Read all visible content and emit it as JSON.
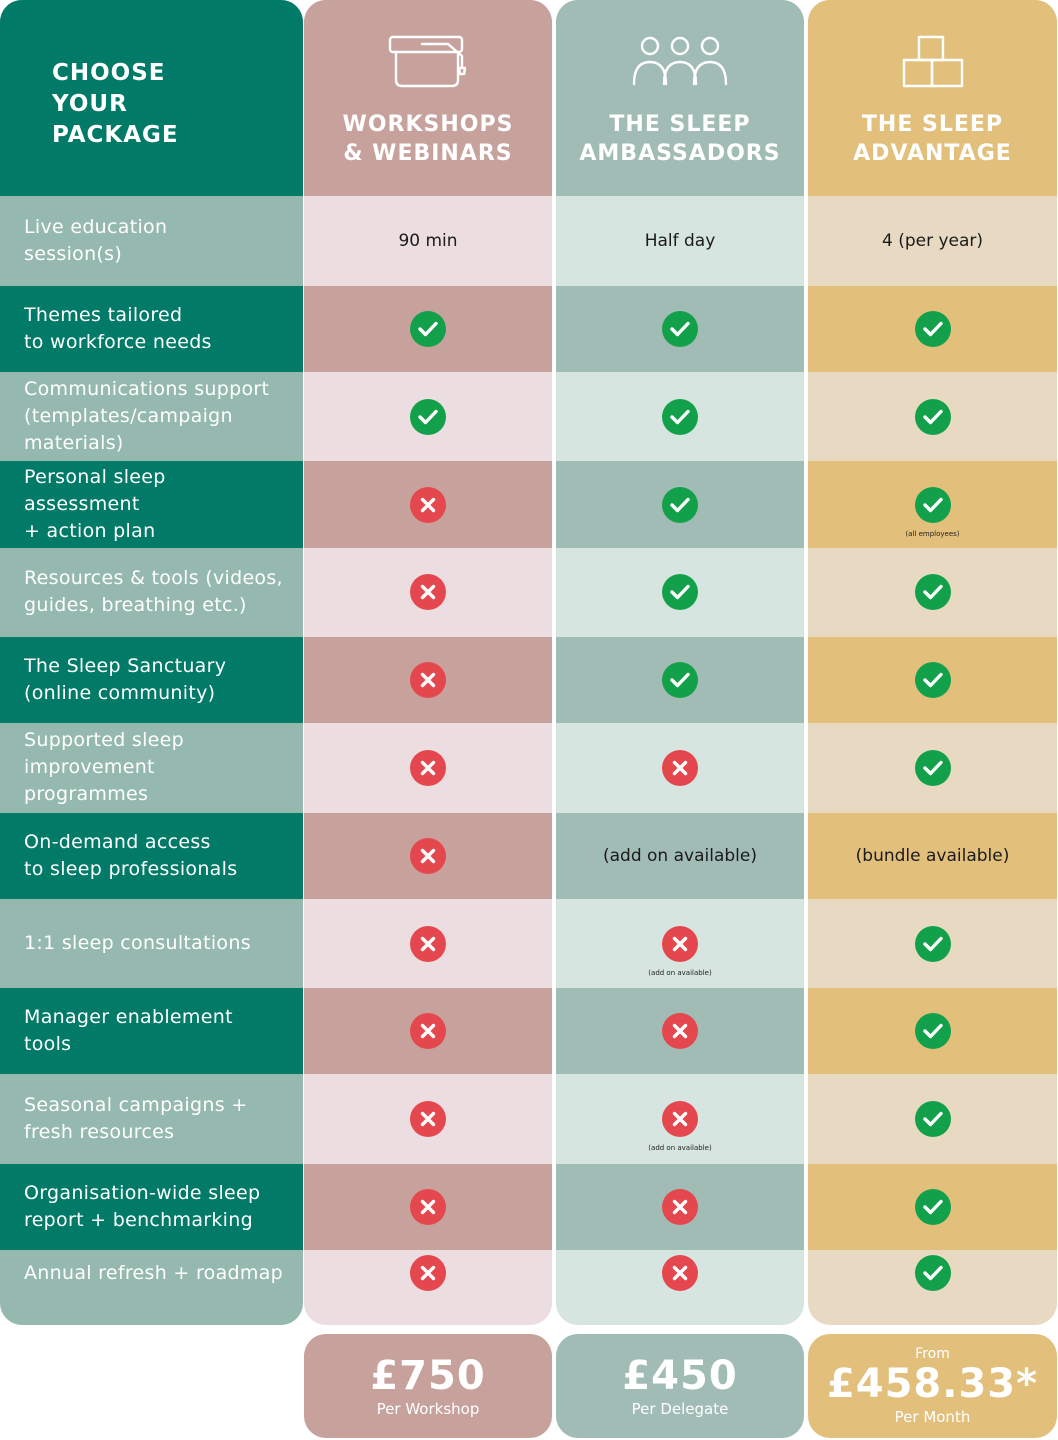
{
  "header": {
    "title": "CHOOSE\nYOUR\nPACKAGE",
    "packages": [
      {
        "title": "WORKSHOPS\n& WEBINARS",
        "icon": "graduation-cap-icon"
      },
      {
        "title": "THE SLEEP\nAMBASSADORS",
        "icon": "group-people-icon"
      },
      {
        "title": "THE SLEEP\nADVANTAGE",
        "icon": "stacked-boxes-icon"
      }
    ]
  },
  "colors": {
    "teal_dark": "#017a68",
    "teal_light": "#95b9ae",
    "rose_header": "#c7a19b",
    "rose_light": "#ebdde0",
    "sage_header": "#a1bcb5",
    "sage_light": "#d6e5df",
    "gold_header": "#e2c07b",
    "gold_light": "#e8d9c2",
    "check_green": "#12a14a",
    "cross_red": "#e5474e"
  },
  "rows": [
    {
      "feature": "Live education\nsession(s)",
      "cells": [
        {
          "text": "90 min"
        },
        {
          "text": "Half day"
        },
        {
          "text": "4 (per year)"
        }
      ]
    },
    {
      "feature": "Themes tailored\nto workforce needs",
      "cells": [
        {
          "mark": "yes"
        },
        {
          "mark": "yes"
        },
        {
          "mark": "yes"
        }
      ]
    },
    {
      "feature": "Communications support\n(templates/campaign\nmaterials)",
      "cells": [
        {
          "mark": "yes"
        },
        {
          "mark": "yes"
        },
        {
          "mark": "yes"
        }
      ]
    },
    {
      "feature": "Personal sleep assessment\n+ action plan",
      "cells": [
        {
          "mark": "no"
        },
        {
          "mark": "yes"
        },
        {
          "mark": "yes",
          "note": "(all employees)"
        }
      ]
    },
    {
      "feature": "Resources & tools (videos,\nguides, breathing etc.)",
      "cells": [
        {
          "mark": "no"
        },
        {
          "mark": "yes"
        },
        {
          "mark": "yes"
        }
      ]
    },
    {
      "feature": "The Sleep Sanctuary\n(online community)",
      "cells": [
        {
          "mark": "no"
        },
        {
          "mark": "yes"
        },
        {
          "mark": "yes"
        }
      ]
    },
    {
      "feature": "Supported sleep\nimprovement programmes",
      "cells": [
        {
          "mark": "no"
        },
        {
          "mark": "no"
        },
        {
          "mark": "yes"
        }
      ]
    },
    {
      "feature": "On-demand access\nto sleep professionals",
      "cells": [
        {
          "mark": "no"
        },
        {
          "text": "(add on available)"
        },
        {
          "text": "(bundle available)"
        }
      ]
    },
    {
      "feature": "1:1 sleep consultations",
      "cells": [
        {
          "mark": "no"
        },
        {
          "mark": "no",
          "note": "(add on available)"
        },
        {
          "mark": "yes"
        }
      ]
    },
    {
      "feature": "Manager enablement tools",
      "cells": [
        {
          "mark": "no"
        },
        {
          "mark": "no"
        },
        {
          "mark": "yes"
        }
      ]
    },
    {
      "feature": "Seasonal campaigns +\nfresh resources",
      "cells": [
        {
          "mark": "no"
        },
        {
          "mark": "no",
          "note": "(add on available)"
        },
        {
          "mark": "yes"
        }
      ]
    },
    {
      "feature": "Organisation-wide sleep\nreport + benchmarking",
      "cells": [
        {
          "mark": "no"
        },
        {
          "mark": "no"
        },
        {
          "mark": "yes"
        }
      ]
    },
    {
      "feature": "Annual refresh + roadmap",
      "cells": [
        {
          "mark": "no"
        },
        {
          "mark": "no"
        },
        {
          "mark": "yes"
        }
      ]
    }
  ],
  "prices": [
    {
      "prefix": "",
      "amount": "£750",
      "unit": "Per Workshop"
    },
    {
      "prefix": "",
      "amount": "£450",
      "unit": "Per Delegate"
    },
    {
      "prefix": "From",
      "amount": "£458.33*",
      "unit": "Per Month"
    }
  ]
}
